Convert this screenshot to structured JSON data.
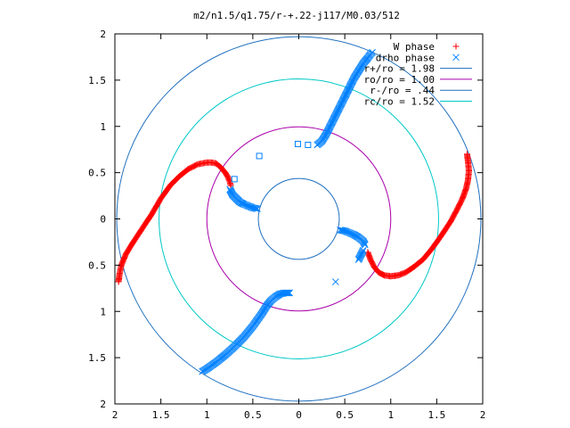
{
  "chart_data": {
    "type": "scatter",
    "title": "m2/n1.5/q1.75/r-+.22-j117/M0.03/512",
    "xlabel": "",
    "ylabel": "",
    "xlim": [
      -2,
      2
    ],
    "ylim": [
      -2,
      2
    ],
    "xtick_labels": [
      "2",
      "1.5",
      "1",
      "0.5",
      "0",
      "0.5",
      "1",
      "1.5",
      "2"
    ],
    "ytick_labels": [
      "2",
      "1.5",
      "1",
      "0.5",
      "0",
      "0.5",
      "1",
      "1.5",
      "2"
    ],
    "grid": false,
    "legend_position": "top-right",
    "series": [
      {
        "name": "W phase",
        "marker": "plus",
        "color": "#ff0000",
        "x": [
          -1.96,
          -1.95,
          -1.93,
          -1.88,
          -1.8,
          -1.7,
          -1.6,
          -1.5,
          -1.4,
          -1.3,
          -1.2,
          -1.1,
          -1.0,
          -0.95,
          -0.9,
          -0.85,
          -0.8,
          -0.77,
          -0.75,
          -0.74,
          0.75,
          0.78,
          0.82,
          0.87,
          0.93,
          1.0,
          1.08,
          1.16,
          1.25,
          1.35,
          1.45,
          1.55,
          1.65,
          1.72,
          1.78,
          1.82,
          1.84,
          1.85,
          1.84,
          1.83
        ],
        "y": [
          -0.68,
          -0.6,
          -0.5,
          -0.38,
          -0.25,
          -0.1,
          0.05,
          0.22,
          0.36,
          0.46,
          0.54,
          0.59,
          0.61,
          0.61,
          0.6,
          0.56,
          0.5,
          0.45,
          0.4,
          0.36,
          -0.36,
          -0.44,
          -0.52,
          -0.58,
          -0.61,
          -0.62,
          -0.61,
          -0.58,
          -0.52,
          -0.44,
          -0.32,
          -0.18,
          -0.03,
          0.1,
          0.22,
          0.33,
          0.42,
          0.52,
          0.62,
          0.7
        ]
      },
      {
        "name": "drho phase",
        "marker": "x",
        "color": "#0080ff",
        "x": [
          0.2,
          0.25,
          0.3,
          0.35,
          0.4,
          0.45,
          0.5,
          0.55,
          0.6,
          0.65,
          0.7,
          0.75,
          0.78,
          0.8,
          -0.75,
          -0.72,
          -0.68,
          -0.64,
          -0.6,
          -0.55,
          -0.5,
          -0.45,
          0.45,
          0.5,
          0.55,
          0.6,
          0.65,
          0.7,
          0.72,
          -1.05,
          -1.0,
          -0.9,
          -0.8,
          -0.7,
          -0.6,
          -0.5,
          -0.4,
          -0.35,
          -0.3,
          -0.25,
          -0.2,
          -0.15,
          -0.1,
          0.4,
          0.65,
          0.7
        ],
        "y": [
          0.8,
          0.84,
          0.92,
          1.02,
          1.12,
          1.22,
          1.32,
          1.42,
          1.52,
          1.6,
          1.68,
          1.74,
          1.78,
          1.8,
          0.32,
          0.26,
          0.22,
          0.18,
          0.16,
          0.14,
          0.12,
          0.11,
          -0.12,
          -0.13,
          -0.15,
          -0.17,
          -0.2,
          -0.24,
          -0.28,
          -1.65,
          -1.62,
          -1.55,
          -1.47,
          -1.38,
          -1.28,
          -1.16,
          -1.02,
          -0.94,
          -0.88,
          -0.84,
          -0.81,
          -0.8,
          -0.8,
          -0.68,
          -0.44,
          -0.34
        ]
      },
      {
        "name": "",
        "marker": "square",
        "color": "#0080ff",
        "x": [
          -0.7,
          -0.43,
          -0.01,
          0.1
        ],
        "y": [
          0.43,
          0.68,
          0.81,
          0.8
        ]
      },
      {
        "name": "r+/ro = 1.98",
        "type": "circle",
        "radius": 1.98,
        "color": "#1f6fbf"
      },
      {
        "name": "ro/ro = 1.00",
        "type": "circle",
        "radius": 1.0,
        "color": "#aa00aa"
      },
      {
        "name": "r-/ro = .44",
        "type": "circle",
        "radius": 0.44,
        "color": "#1f6fbf"
      },
      {
        "name": "rc/ro = 1.52",
        "type": "circle",
        "radius": 1.52,
        "color": "#00c8c8"
      }
    ]
  }
}
